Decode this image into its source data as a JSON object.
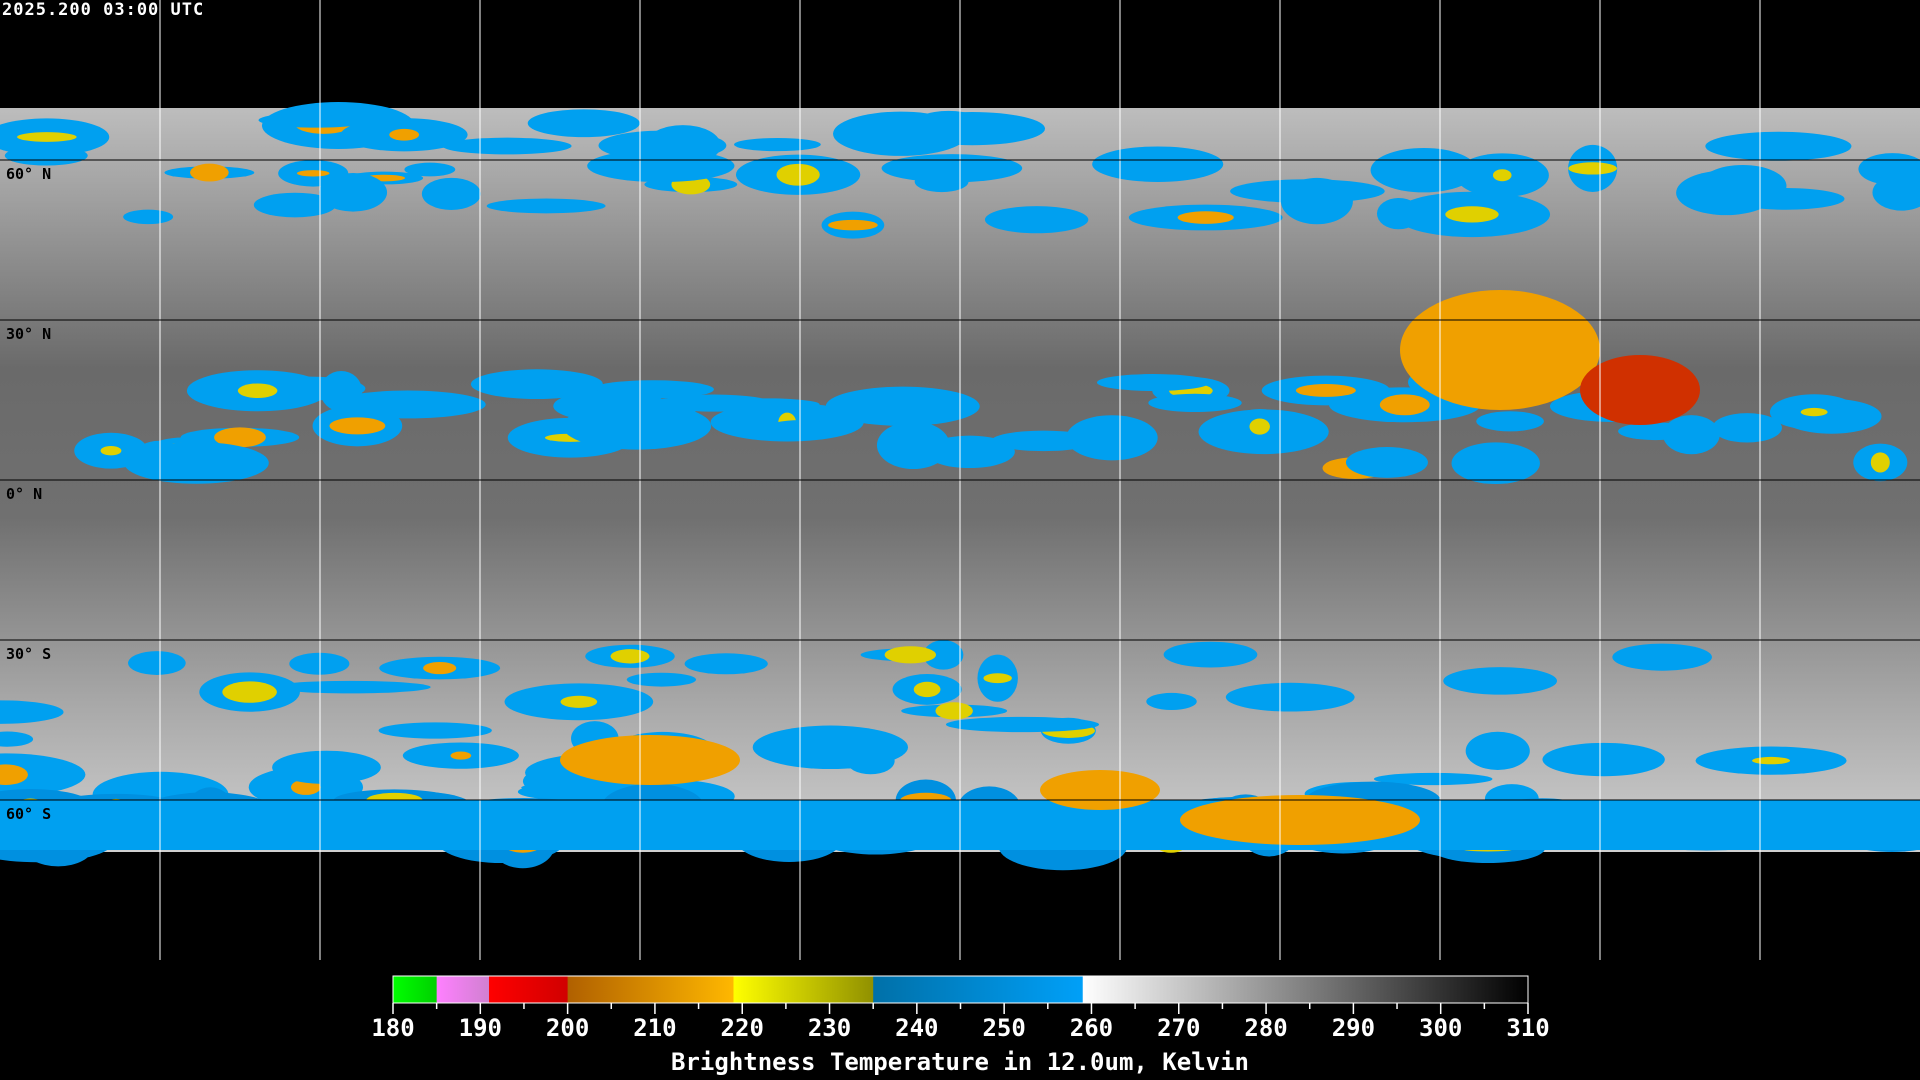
{
  "header": {
    "timestamp": "2025.200 03:00 UTC"
  },
  "map": {
    "projection": "equirectangular",
    "grid_spacing_deg": 30,
    "lat_labels": [
      "60° N",
      "30° N",
      "0° N",
      "30° S",
      "60° S"
    ],
    "lat_values": [
      60,
      30,
      0,
      -30,
      -60
    ],
    "colors": {
      "background": "#000000",
      "grid": "#ffffff",
      "coastline_land": "#000000",
      "coastline_nodata": "#ffffff"
    }
  },
  "colorbar": {
    "title": "Brightness Temperature in 12.0um, Kelvin",
    "min": 180,
    "max": 310,
    "tick_labels": [
      "180",
      "190",
      "200",
      "210",
      "220",
      "230",
      "240",
      "250",
      "260",
      "270",
      "280",
      "290",
      "300",
      "310"
    ],
    "segments": [
      {
        "from": 180,
        "to": 185,
        "c1": "#00ff00",
        "c2": "#00d000"
      },
      {
        "from": 185,
        "to": 191,
        "c1": "#ff80ff",
        "c2": "#d080d0"
      },
      {
        "from": 191,
        "to": 200,
        "c1": "#ff0000",
        "c2": "#d00000"
      },
      {
        "from": 200,
        "to": 219,
        "c1": "#b06000",
        "c2": "#ffb800"
      },
      {
        "from": 219,
        "to": 235,
        "c1": "#ffff00",
        "c2": "#909000"
      },
      {
        "from": 235,
        "to": 259,
        "c1": "#0070a8",
        "c2": "#00a0f8"
      },
      {
        "from": 259,
        "to": 310,
        "c1": "#ffffff",
        "c2": "#000000"
      }
    ]
  }
}
